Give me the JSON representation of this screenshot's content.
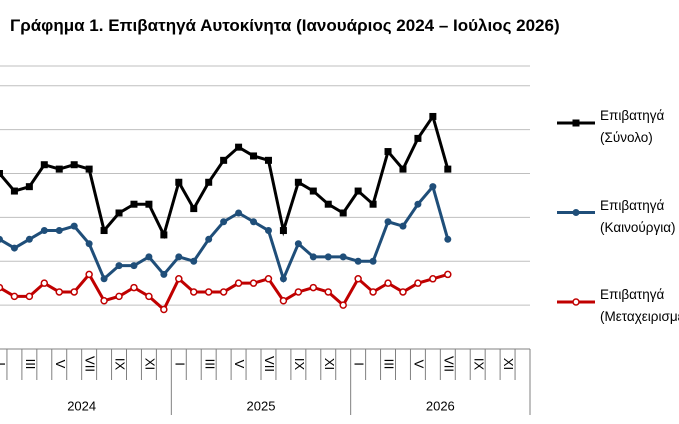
{
  "chart_data": {
    "type": "line",
    "title": "Γράφημα 1. Επιβατηγά Αυτοκίνητα (Ιανουάριος 2024 – Ιούλιος 2026)",
    "categories": [
      "I",
      null,
      "III",
      null,
      "V",
      null,
      "VII",
      null,
      "IX",
      null,
      "XI",
      null,
      "I",
      null,
      "III",
      null,
      "V",
      null,
      "VII",
      null,
      "IX",
      null,
      "XI",
      null,
      "I",
      null,
      "III",
      null,
      "V",
      null,
      "VII",
      null,
      "IX",
      null,
      "XI",
      null
    ],
    "years": [
      "2024",
      "2025",
      "2026"
    ],
    "ylim": [
      0,
      6.45
    ],
    "yticks": [
      0,
      1,
      2,
      3,
      4,
      5,
      6
    ],
    "grid": true,
    "series": [
      {
        "name": "Επιβατηγά (Σύνολο)",
        "color": "#000000",
        "marker": "square",
        "values": [
          4.0,
          3.6,
          3.7,
          4.2,
          4.1,
          4.2,
          4.1,
          2.7,
          3.1,
          3.3,
          3.3,
          2.6,
          3.8,
          3.2,
          3.8,
          4.3,
          4.6,
          4.4,
          4.3,
          2.7,
          3.8,
          3.6,
          3.3,
          3.1,
          3.6,
          3.3,
          4.5,
          4.1,
          4.8,
          5.3,
          4.1,
          null,
          null,
          null,
          null,
          null
        ]
      },
      {
        "name": "Επιβατηγά (Καινούργια)",
        "color": "#1f4e79",
        "marker": "circle",
        "values": [
          2.5,
          2.3,
          2.5,
          2.7,
          2.7,
          2.8,
          2.4,
          1.6,
          1.9,
          1.9,
          2.1,
          1.7,
          2.1,
          2.0,
          2.5,
          2.9,
          3.1,
          2.9,
          2.7,
          1.6,
          2.4,
          2.1,
          2.1,
          2.1,
          2.0,
          2.0,
          2.9,
          2.8,
          3.3,
          3.7,
          2.5,
          null,
          null,
          null,
          null,
          null
        ]
      },
      {
        "name": "Επιβατηγά (Μεταχειρισμένα)",
        "color": "#c00000",
        "marker": "open-circle",
        "values": [
          1.4,
          1.2,
          1.2,
          1.5,
          1.3,
          1.3,
          1.7,
          1.1,
          1.2,
          1.4,
          1.2,
          0.9,
          1.6,
          1.3,
          1.3,
          1.3,
          1.5,
          1.5,
          1.6,
          1.1,
          1.3,
          1.4,
          1.3,
          1.0,
          1.6,
          1.3,
          1.5,
          1.3,
          1.5,
          1.6,
          1.7,
          null,
          null,
          null,
          null,
          null
        ]
      }
    ]
  }
}
